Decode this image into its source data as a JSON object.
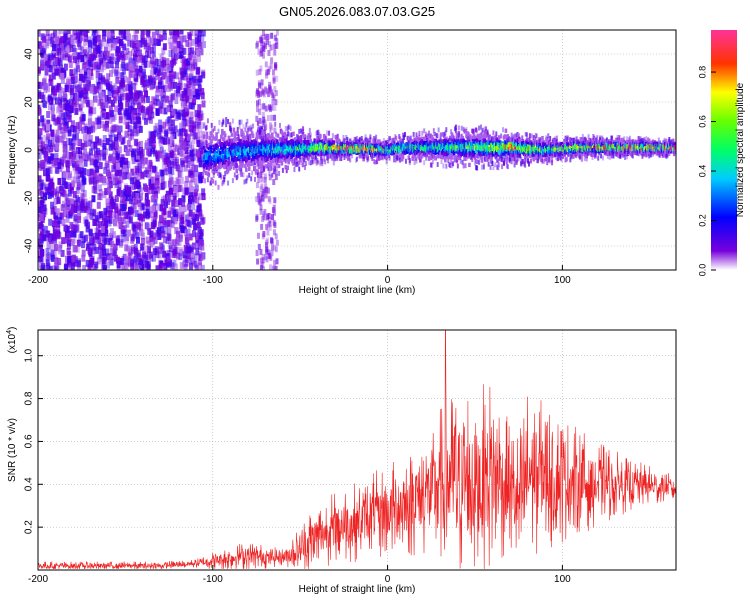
{
  "title": "GN05.2026.083.07.03.G25",
  "chart_data": [
    {
      "type": "heatmap",
      "xlabel": "Height of straight line (km)",
      "ylabel": "Frequency (Hz)",
      "xlim": [
        -200,
        165
      ],
      "ylim": [
        -50,
        50
      ],
      "xticks": [
        -200,
        -100,
        0,
        100
      ],
      "xtick_labels": [
        "-200",
        "-100",
        "0",
        "100"
      ],
      "yticks": [
        -40,
        -20,
        0,
        20,
        40
      ],
      "ytick_labels": [
        "-40",
        "-20",
        "0",
        "20",
        "40"
      ],
      "grid": true,
      "noise_region_x": [
        -200,
        -105
      ],
      "signal_band": {
        "x_range": [
          -105,
          165
        ],
        "center_frequency": [
          [
            -105,
            -3
          ],
          [
            -90,
            -1
          ],
          [
            -70,
            0
          ],
          [
            -50,
            0.5
          ],
          [
            -40,
            1
          ],
          [
            -20,
            0.5
          ],
          [
            0,
            0
          ],
          [
            10,
            1
          ],
          [
            30,
            1
          ],
          [
            50,
            1
          ],
          [
            70,
            1
          ],
          [
            90,
            0
          ],
          [
            110,
            1
          ],
          [
            130,
            1
          ],
          [
            150,
            1
          ],
          [
            165,
            1
          ]
        ],
        "half_width": [
          [
            -105,
            9
          ],
          [
            -90,
            8
          ],
          [
            -60,
            6
          ],
          [
            -40,
            4
          ],
          [
            -20,
            3
          ],
          [
            0,
            3
          ],
          [
            20,
            4
          ],
          [
            40,
            5
          ],
          [
            60,
            5
          ],
          [
            80,
            4
          ],
          [
            100,
            3
          ],
          [
            130,
            2.5
          ],
          [
            165,
            2
          ]
        ],
        "peak_amplitude": [
          [
            -105,
            0.35
          ],
          [
            -80,
            0.4
          ],
          [
            -50,
            0.55
          ],
          [
            -40,
            0.75
          ],
          [
            -30,
            0.9
          ],
          [
            -10,
            0.95
          ],
          [
            0,
            0.6
          ],
          [
            20,
            0.55
          ],
          [
            40,
            0.6
          ],
          [
            60,
            0.7
          ],
          [
            70,
            0.9
          ],
          [
            90,
            0.6
          ],
          [
            110,
            0.8
          ],
          [
            140,
            0.95
          ],
          [
            165,
            0.95
          ]
        ]
      },
      "colorbar": {
        "label": "Normalized spectral amplitude",
        "range": [
          0,
          0.97
        ],
        "ticks": [
          0,
          0.2,
          0.4,
          0.6,
          0.8
        ],
        "tick_labels": [
          "0.0",
          "0.2",
          "0.4",
          "0.6",
          "0.8"
        ],
        "colormap": [
          "#ffffff",
          "#6600cc",
          "#0000ff",
          "#00ffff",
          "#00ff00",
          "#ffff00",
          "#ff0000",
          "#ff3399"
        ]
      }
    },
    {
      "type": "line",
      "xlabel": "Height of straight line (km)",
      "ylabel": "SNR (10 * v/v)",
      "scale_label": "(x10",
      "scale_exp": "4",
      "xlim": [
        -200,
        165
      ],
      "ylim": [
        0,
        1.12
      ],
      "xticks": [
        -200,
        -100,
        0,
        100
      ],
      "xtick_labels": [
        "-200",
        "-100",
        "0",
        "100"
      ],
      "yticks": [
        0.2,
        0.4,
        0.6,
        0.8,
        1.0
      ],
      "ytick_labels": [
        "0.2",
        "0.4",
        "0.6",
        "0.8",
        "1.0"
      ],
      "grid": true,
      "series": [
        {
          "name": "SNR",
          "color": "#ee2222",
          "mean": [
            [
              -200,
              0.02
            ],
            [
              -130,
              0.02
            ],
            [
              -110,
              0.03
            ],
            [
              -95,
              0.05
            ],
            [
              -80,
              0.07
            ],
            [
              -70,
              0.06
            ],
            [
              -60,
              0.06
            ],
            [
              -50,
              0.1
            ],
            [
              -40,
              0.16
            ],
            [
              -30,
              0.2
            ],
            [
              -20,
              0.22
            ],
            [
              -10,
              0.25
            ],
            [
              0,
              0.27
            ],
            [
              10,
              0.3
            ],
            [
              20,
              0.34
            ],
            [
              25,
              0.38
            ],
            [
              35,
              0.42
            ],
            [
              50,
              0.4
            ],
            [
              60,
              0.45
            ],
            [
              70,
              0.38
            ],
            [
              75,
              0.3
            ],
            [
              80,
              0.45
            ],
            [
              100,
              0.42
            ],
            [
              120,
              0.4
            ],
            [
              140,
              0.4
            ],
            [
              165,
              0.38
            ]
          ],
          "spread": [
            [
              -200,
              0.02
            ],
            [
              -110,
              0.02
            ],
            [
              -95,
              0.05
            ],
            [
              -80,
              0.07
            ],
            [
              -60,
              0.04
            ],
            [
              -45,
              0.15
            ],
            [
              -30,
              0.17
            ],
            [
              -10,
              0.2
            ],
            [
              10,
              0.25
            ],
            [
              25,
              0.3
            ],
            [
              40,
              0.5
            ],
            [
              60,
              0.45
            ],
            [
              70,
              0.3
            ],
            [
              80,
              0.4
            ],
            [
              100,
              0.3
            ],
            [
              120,
              0.2
            ],
            [
              140,
              0.12
            ],
            [
              165,
              0.06
            ]
          ],
          "max": 1.12,
          "max_at": 33
        }
      ]
    }
  ]
}
